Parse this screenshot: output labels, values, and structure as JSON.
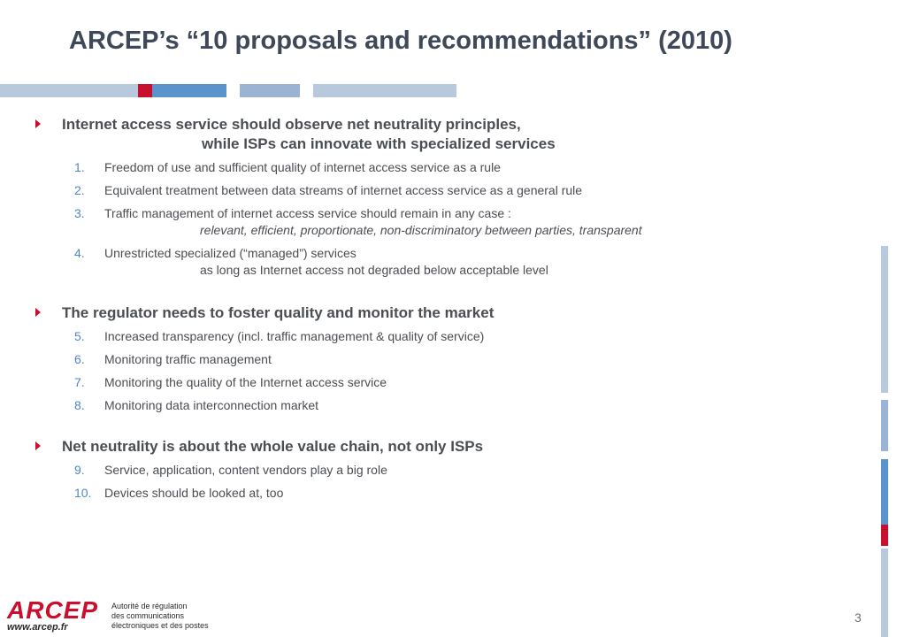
{
  "slide": {
    "title": "ARCEP’s “10 proposals and recommendations” (2010)",
    "page_number": "3"
  },
  "sections": [
    {
      "heading_line1": "Internet access service should observe net neutrality principles,",
      "heading_line2": "while ISPs can innovate with specialized services",
      "items": [
        {
          "num": "1.",
          "text": "Freedom of use and sufficient quality of internet access service as a rule"
        },
        {
          "num": "2.",
          "text": "Equivalent treatment between data streams of internet access service as a general rule"
        },
        {
          "num": "3.",
          "text": "Traffic management of internet access service should remain in any case :",
          "sub": "relevant, efficient, proportionate, non-discriminatory between parties, transparent"
        },
        {
          "num": "4.",
          "text": "Unrestricted specialized (“managed”) services",
          "sub": "as long as Internet access not degraded below acceptable level"
        }
      ]
    },
    {
      "heading_line1": "The regulator needs to foster quality and monitor the market",
      "items": [
        {
          "num": "5.",
          "text": "Increased transparency (incl. traffic management & quality of service)"
        },
        {
          "num": "6.",
          "text": "Monitoring traffic management"
        },
        {
          "num": "7.",
          "text": "Monitoring the quality of the Internet access service"
        },
        {
          "num": "8.",
          "text": "Monitoring data interconnection market"
        }
      ]
    },
    {
      "heading_line1": "Net neutrality is about the whole value chain, not only ISPs",
      "items": [
        {
          "num": "9.",
          "text": "Service, application, content vendors play a big role"
        },
        {
          "num": "10.",
          "text": "Devices should be looked at, too"
        }
      ]
    }
  ],
  "logo": {
    "wordmark": "ARCEP",
    "url": "www.arcep.fr",
    "tagline": [
      "Autorité de régulation",
      "des communications",
      "électroniques et des postes"
    ]
  },
  "colors": {
    "accent_red": "#c8102e",
    "accent_blue": "#4f86c6",
    "bar_light": "#b8c9de",
    "bar_mid": "#9bb4d3",
    "title": "#3e4858"
  }
}
